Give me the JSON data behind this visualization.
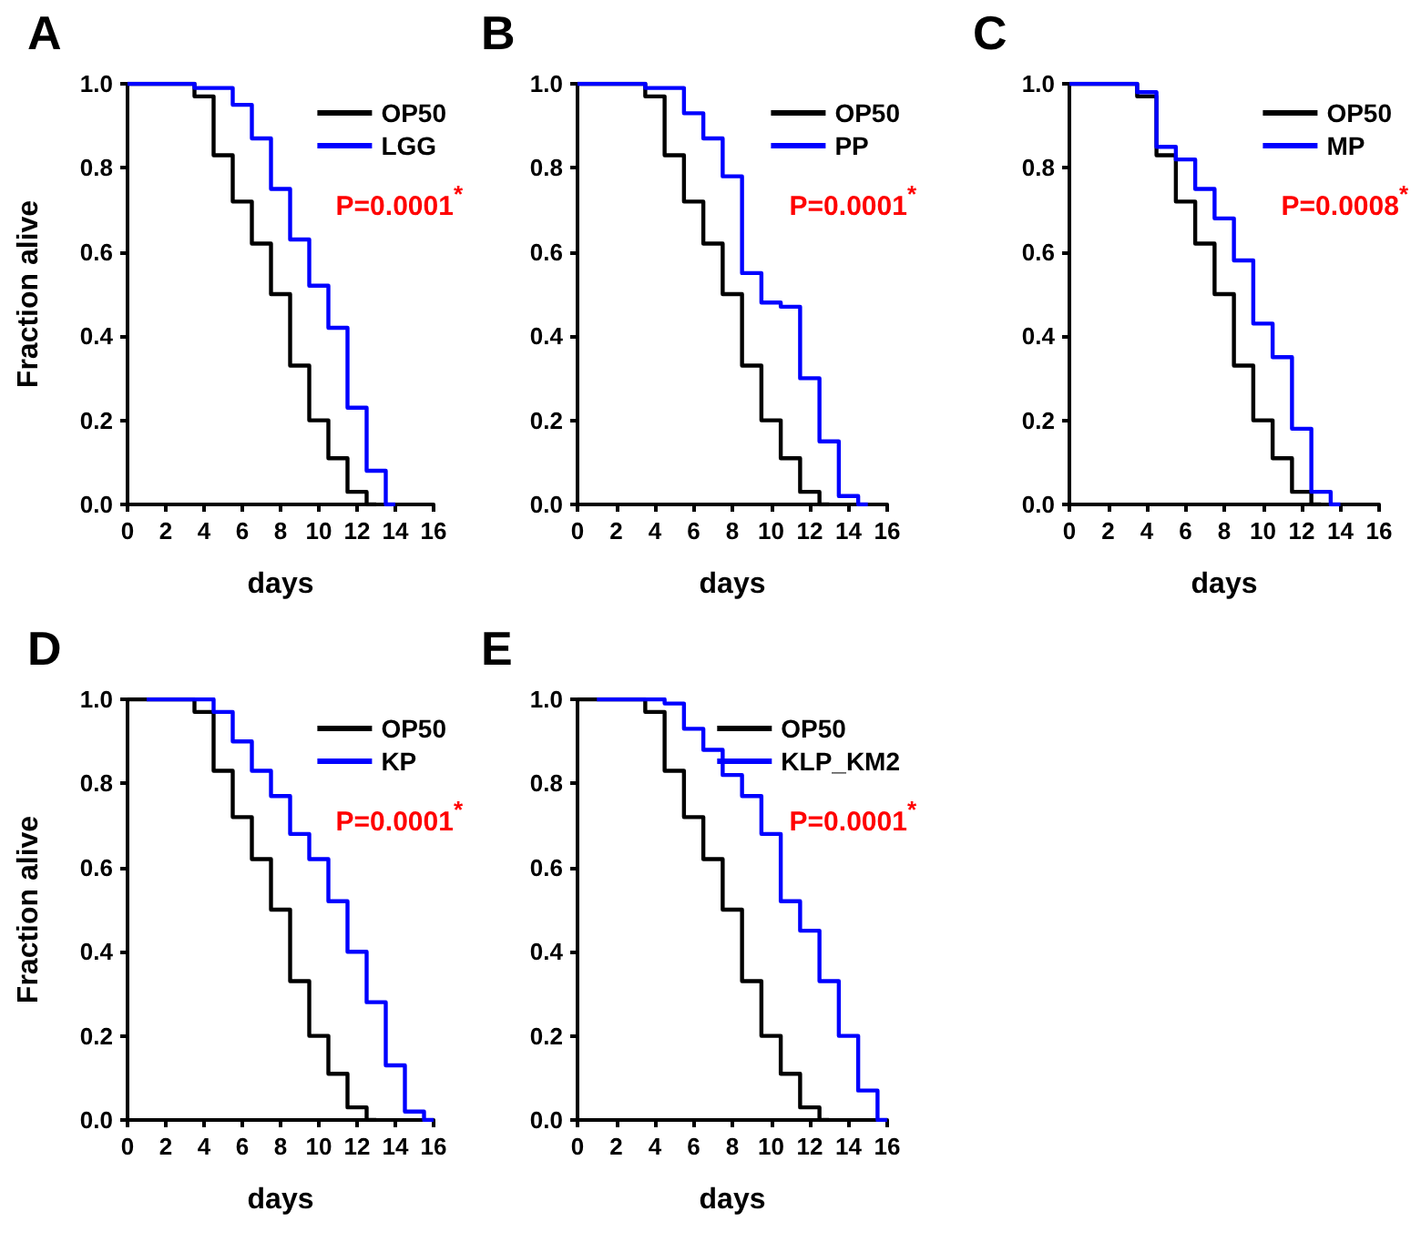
{
  "chart_data": [
    {
      "type": "step",
      "title": "A",
      "xlabel": "days",
      "ylabel": "Fraction alive",
      "legend": "top right",
      "xlim": [
        0,
        16
      ],
      "ylim": [
        0,
        1
      ],
      "xticks": [
        0,
        2,
        4,
        6,
        8,
        10,
        12,
        14,
        16
      ],
      "yticks": [
        {
          "value": 0,
          "label": "0.0"
        },
        {
          "value": 0.2,
          "label": "0.2"
        },
        {
          "value": 0.4,
          "label": "0.4"
        },
        {
          "value": 0.6,
          "label": "0.6"
        },
        {
          "value": 0.8,
          "label": "0.8"
        },
        {
          "value": 1,
          "label": "1.0"
        }
      ],
      "annotations": [
        "P=0.0001$^{*}$"
      ],
      "series": [
        {
          "name": "OP50",
          "color": "#000000",
          "x": [
            0,
            3.5,
            4.5,
            5.5,
            6.5,
            7.5,
            8.5,
            9.5,
            10.5,
            11.5,
            12.5,
            13
          ],
          "values": [
            1,
            0.97,
            0.83,
            0.72,
            0.62,
            0.5,
            0.33,
            0.2,
            0.11,
            0.03,
            0,
            0
          ]
        },
        {
          "name": "LGG",
          "color": "#0000ff",
          "x": [
            0,
            3.5,
            5.5,
            6.5,
            7.5,
            8.5,
            9.5,
            10.5,
            11.5,
            12.5,
            13.5,
            14
          ],
          "values": [
            1,
            0.99,
            0.95,
            0.87,
            0.75,
            0.63,
            0.52,
            0.42,
            0.23,
            0.08,
            0,
            0
          ]
        }
      ]
    },
    {
      "type": "step",
      "title": "B",
      "xlabel": "days",
      "legend": "top right",
      "xlim": [
        0,
        16
      ],
      "ylim": [
        0,
        1
      ],
      "xticks": [
        0,
        2,
        4,
        6,
        8,
        10,
        12,
        14,
        16
      ],
      "yticks": [
        {
          "value": 0,
          "label": "0.0"
        },
        {
          "value": 0.2,
          "label": "0.2"
        },
        {
          "value": 0.4,
          "label": "0.4"
        },
        {
          "value": 0.6,
          "label": "0.6"
        },
        {
          "value": 0.8,
          "label": "0.8"
        },
        {
          "value": 1,
          "label": "1.0"
        }
      ],
      "annotations": [
        "P=0.0001$^{*}$"
      ],
      "series": [
        {
          "name": "OP50",
          "color": "#000000",
          "x": [
            0,
            3.5,
            4.5,
            5.5,
            6.5,
            7.5,
            8.5,
            9.5,
            10.5,
            11.5,
            12.5,
            13
          ],
          "values": [
            1,
            0.97,
            0.83,
            0.72,
            0.62,
            0.5,
            0.33,
            0.2,
            0.11,
            0.03,
            0,
            0
          ]
        },
        {
          "name": "PP",
          "color": "#0000ff",
          "x": [
            0,
            3.5,
            5.5,
            6.5,
            7.5,
            8.5,
            9.5,
            10.5,
            11.5,
            12.5,
            13.5,
            14.5,
            15
          ],
          "values": [
            1,
            0.99,
            0.93,
            0.87,
            0.78,
            0.55,
            0.48,
            0.47,
            0.3,
            0.15,
            0.02,
            0,
            0
          ]
        }
      ]
    },
    {
      "type": "step",
      "title": "C",
      "xlabel": "days",
      "legend": "top right",
      "xlim": [
        0,
        16
      ],
      "ylim": [
        0,
        1
      ],
      "xticks": [
        0,
        2,
        4,
        6,
        8,
        10,
        12,
        14,
        16
      ],
      "yticks": [
        {
          "value": 0,
          "label": "0.0"
        },
        {
          "value": 0.2,
          "label": "0.2"
        },
        {
          "value": 0.4,
          "label": "0.4"
        },
        {
          "value": 0.6,
          "label": "0.6"
        },
        {
          "value": 0.8,
          "label": "0.8"
        },
        {
          "value": 1,
          "label": "1.0"
        }
      ],
      "annotations": [
        "P=0.0008$^{*}$"
      ],
      "series": [
        {
          "name": "OP50",
          "color": "#000000",
          "x": [
            0,
            3.5,
            4.5,
            5.5,
            6.5,
            7.5,
            8.5,
            9.5,
            10.5,
            11.5,
            12.5,
            13
          ],
          "values": [
            1,
            0.97,
            0.83,
            0.72,
            0.62,
            0.5,
            0.33,
            0.2,
            0.11,
            0.03,
            0,
            0
          ]
        },
        {
          "name": "MP",
          "color": "#0000ff",
          "x": [
            0,
            3.5,
            4.5,
            5.5,
            6.5,
            7.5,
            8.5,
            9.5,
            10.5,
            11.5,
            12.5,
            13.5,
            14
          ],
          "values": [
            1,
            0.98,
            0.85,
            0.82,
            0.75,
            0.68,
            0.58,
            0.43,
            0.35,
            0.18,
            0.03,
            0,
            0
          ]
        }
      ]
    },
    {
      "type": "step",
      "title": "D",
      "xlabel": "days",
      "ylabel": "Fraction alive",
      "legend": "top right",
      "xlim": [
        0,
        16
      ],
      "ylim": [
        0,
        1
      ],
      "xticks": [
        0,
        2,
        4,
        6,
        8,
        10,
        12,
        14,
        16
      ],
      "yticks": [
        {
          "value": 0,
          "label": "0.0"
        },
        {
          "value": 0.2,
          "label": "0.2"
        },
        {
          "value": 0.4,
          "label": "0.4"
        },
        {
          "value": 0.6,
          "label": "0.6"
        },
        {
          "value": 0.8,
          "label": "0.8"
        },
        {
          "value": 1,
          "label": "1.0"
        }
      ],
      "annotations": [
        "P=0.0001$^{*}$"
      ],
      "series": [
        {
          "name": "OP50",
          "color": "#000000",
          "x": [
            0,
            3.5,
            4.5,
            5.5,
            6.5,
            7.5,
            8.5,
            9.5,
            10.5,
            11.5,
            12.5,
            13
          ],
          "values": [
            1,
            0.97,
            0.83,
            0.72,
            0.62,
            0.5,
            0.33,
            0.2,
            0.11,
            0.03,
            0,
            0
          ]
        },
        {
          "name": "KP",
          "color": "#0000ff",
          "x": [
            1,
            4.5,
            5.5,
            6.5,
            7.5,
            8.5,
            9.5,
            10.5,
            11.5,
            12.5,
            13.5,
            14.5,
            15.5,
            16
          ],
          "values": [
            1,
            0.97,
            0.9,
            0.83,
            0.77,
            0.68,
            0.62,
            0.52,
            0.4,
            0.28,
            0.13,
            0.02,
            0,
            0
          ]
        }
      ]
    },
    {
      "type": "step",
      "title": "E",
      "xlabel": "days",
      "legend": "top right",
      "xlim": [
        0,
        16
      ],
      "ylim": [
        0,
        1
      ],
      "xticks": [
        0,
        2,
        4,
        6,
        8,
        10,
        12,
        14,
        16
      ],
      "yticks": [
        {
          "value": 0,
          "label": "0.0"
        },
        {
          "value": 0.2,
          "label": "0.2"
        },
        {
          "value": 0.4,
          "label": "0.4"
        },
        {
          "value": 0.6,
          "label": "0.6"
        },
        {
          "value": 0.8,
          "label": "0.8"
        },
        {
          "value": 1,
          "label": "1.0"
        }
      ],
      "annotations": [
        "P=0.0001$^{*}$"
      ],
      "series": [
        {
          "name": "OP50",
          "color": "#000000",
          "x": [
            0,
            3.5,
            4.5,
            5.5,
            6.5,
            7.5,
            8.5,
            9.5,
            10.5,
            11.5,
            12.5,
            13
          ],
          "values": [
            1,
            0.97,
            0.83,
            0.72,
            0.62,
            0.5,
            0.33,
            0.2,
            0.11,
            0.03,
            0,
            0
          ]
        },
        {
          "name": "KLP_KM2",
          "color": "#0000ff",
          "x": [
            1,
            4.5,
            5.5,
            6.5,
            7.5,
            8.5,
            9.5,
            10.5,
            11.5,
            12.5,
            13.5,
            14.5,
            15.5,
            16
          ],
          "values": [
            1,
            0.99,
            0.93,
            0.88,
            0.82,
            0.77,
            0.68,
            0.52,
            0.45,
            0.33,
            0.2,
            0.07,
            0,
            0
          ]
        }
      ]
    }
  ]
}
